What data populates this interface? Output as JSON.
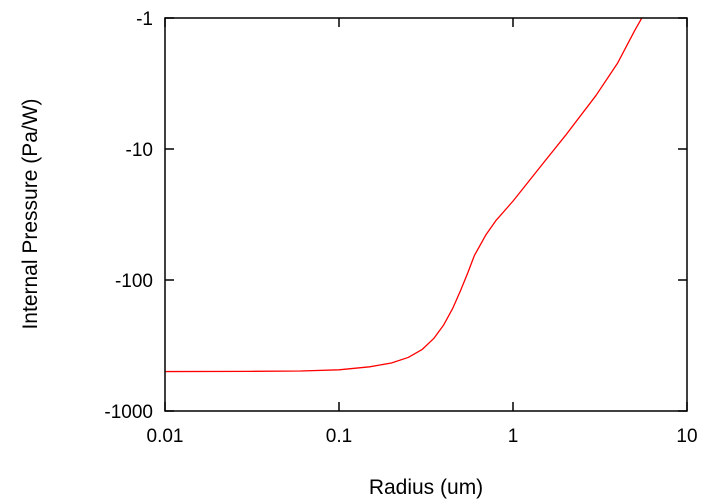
{
  "chart_data": {
    "type": "line",
    "title": "",
    "xlabel": "Radius (um)",
    "ylabel": "Internal Pressure (Pa/W)",
    "x_scale": "log",
    "y_scale": "log",
    "xlim": [
      0.01,
      10
    ],
    "ylim": [
      -1000,
      -1
    ],
    "x_ticks": [
      0.01,
      0.1,
      1,
      10
    ],
    "x_tick_labels": [
      "0.01",
      "0.1",
      "1",
      "10"
    ],
    "y_ticks": [
      -1,
      -10,
      -100,
      -1000
    ],
    "y_tick_labels": [
      "-1",
      "-10",
      "-100",
      "-1000"
    ],
    "grid": false,
    "legend": "none",
    "line_color": "#ff0000",
    "series": [
      {
        "x": [
          0.01,
          0.03,
          0.06,
          0.1,
          0.15,
          0.2,
          0.25,
          0.3,
          0.35,
          0.4,
          0.45,
          0.5,
          0.55,
          0.6,
          0.7,
          0.8,
          1.0,
          1.5,
          2.0,
          3.0,
          4.0,
          5.0,
          5.5
        ],
        "y": [
          -500,
          -498,
          -495,
          -485,
          -460,
          -430,
          -390,
          -340,
          -280,
          -220,
          -165,
          -120,
          -88,
          -65,
          -45,
          -35,
          -25,
          -12.7,
          -7.9,
          -3.9,
          -2.2,
          -1.25,
          -1.0
        ]
      }
    ]
  }
}
